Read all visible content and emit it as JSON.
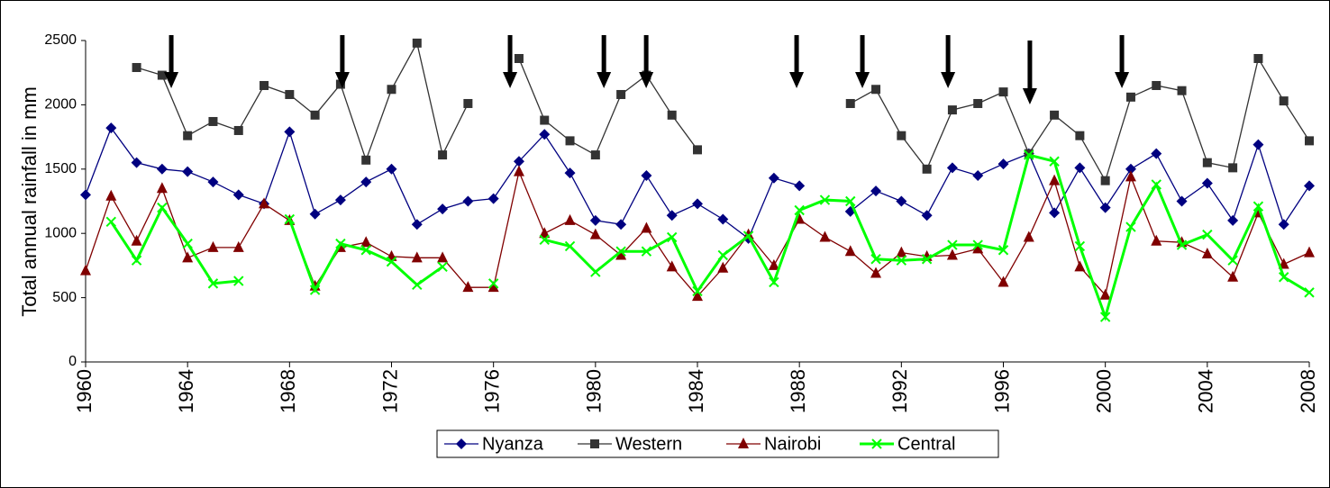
{
  "chart_data": {
    "type": "line",
    "y_label": "Total annual rainfall in mm",
    "x": [
      1960,
      1961,
      1962,
      1963,
      1964,
      1965,
      1966,
      1967,
      1968,
      1969,
      1970,
      1971,
      1972,
      1973,
      1974,
      1975,
      1976,
      1977,
      1978,
      1979,
      1980,
      1981,
      1982,
      1983,
      1984,
      1985,
      1986,
      1987,
      1988,
      1989,
      1990,
      1991,
      1992,
      1993,
      1994,
      1995,
      1996,
      1997,
      1998,
      1999,
      2000,
      2001,
      2002,
      2003,
      2004,
      2005,
      2006,
      2007,
      2008
    ],
    "series": [
      {
        "name": "Nyanza",
        "color": "#000080",
        "marker": "diamond",
        "values": [
          1300,
          1820,
          1550,
          1500,
          1480,
          1400,
          1300,
          1230,
          1790,
          1150,
          1260,
          1400,
          1500,
          1070,
          1190,
          1250,
          1270,
          1560,
          1770,
          1470,
          1100,
          1070,
          1450,
          1140,
          1230,
          1110,
          960,
          1430,
          1370,
          null,
          1170,
          1330,
          1250,
          1140,
          1510,
          1450,
          1540,
          1620,
          1160,
          1510,
          1200,
          1500,
          1620,
          1250,
          1390,
          1100,
          1690,
          1070,
          1370
        ]
      },
      {
        "name": "Western",
        "color": "#333333",
        "marker": "square",
        "values": [
          null,
          null,
          2290,
          2230,
          1760,
          1870,
          1800,
          2150,
          2080,
          1920,
          2160,
          1570,
          2120,
          2480,
          1610,
          2010,
          null,
          2360,
          1880,
          1720,
          1610,
          2080,
          2230,
          1920,
          1650,
          null,
          null,
          null,
          null,
          null,
          2010,
          2120,
          1760,
          1500,
          1960,
          2010,
          2100,
          1620,
          1920,
          1760,
          1410,
          2060,
          2150,
          2110,
          1550,
          1510,
          2360,
          2030,
          1720
        ]
      },
      {
        "name": "Nairobi",
        "color": "#800000",
        "marker": "triangle",
        "values": [
          710,
          1290,
          940,
          1350,
          810,
          890,
          890,
          1230,
          1100,
          590,
          890,
          930,
          820,
          810,
          810,
          580,
          580,
          1480,
          1000,
          1100,
          990,
          830,
          1040,
          740,
          510,
          730,
          990,
          750,
          1110,
          970,
          860,
          690,
          850,
          820,
          830,
          880,
          620,
          970,
          1410,
          740,
          520,
          1440,
          940,
          930,
          840,
          660,
          1160,
          760,
          850
        ]
      },
      {
        "name": "Central",
        "color": "#00ff00",
        "marker": "cross",
        "values": [
          null,
          1090,
          790,
          1200,
          920,
          610,
          630,
          null,
          1110,
          560,
          920,
          870,
          780,
          600,
          740,
          null,
          610,
          null,
          950,
          900,
          700,
          860,
          860,
          970,
          550,
          830,
          980,
          620,
          1180,
          1260,
          1250,
          800,
          790,
          800,
          910,
          910,
          870,
          1610,
          1560,
          900,
          350,
          1050,
          1380,
          910,
          990,
          790,
          1210,
          660,
          540
        ]
      }
    ],
    "arrows": [
      1963.36,
      1970.07,
      1976.65,
      1980.33,
      1981.99,
      1987.89,
      1990.47,
      1993.83,
      1997.04,
      2000.65
    ],
    "xlim": [
      1960,
      2008
    ],
    "xticks": [
      1960,
      1964,
      1968,
      1972,
      1976,
      1980,
      1984,
      1988,
      1992,
      1996,
      2000,
      2004,
      2008
    ],
    "ylim": [
      0,
      2500
    ],
    "yticks": [
      0,
      500,
      1000,
      1500,
      2000,
      2500
    ],
    "legend": "bottom"
  }
}
